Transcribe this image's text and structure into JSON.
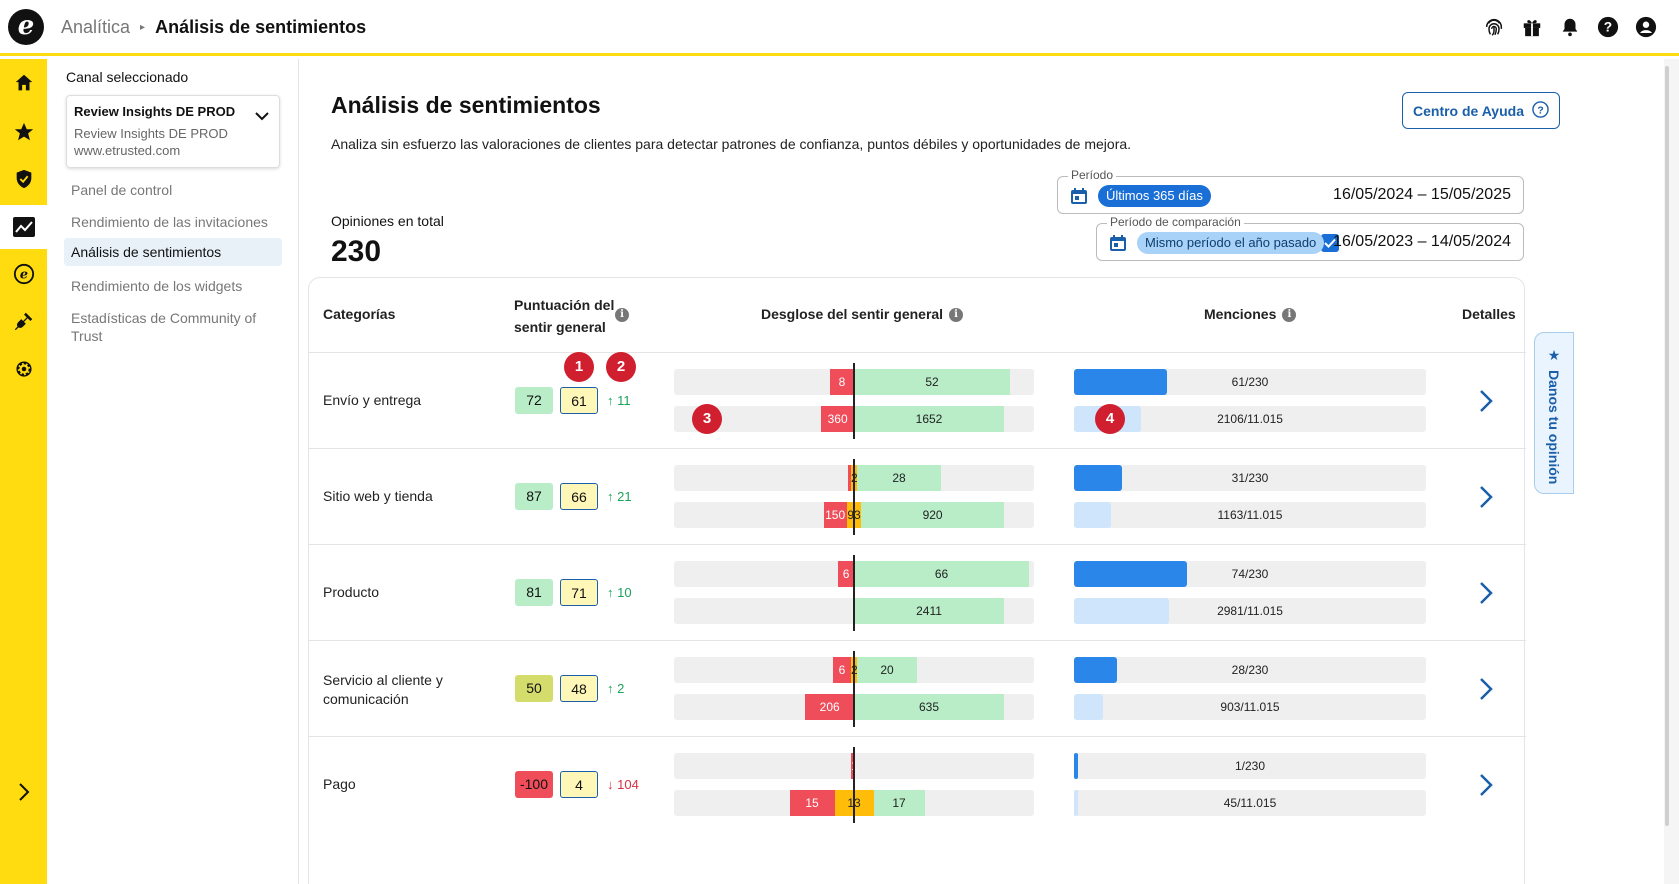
{
  "header": {
    "logo_letter": "e",
    "breadcrumb_parent": "Analítica",
    "breadcrumb_sep": "▸",
    "breadcrumb_current": "Análisis de sentimientos",
    "icons": [
      "fingerprint-icon",
      "gift-icon",
      "bell-icon",
      "help-icon",
      "user-icon"
    ]
  },
  "rail": {
    "items": [
      "home-icon",
      "star-icon",
      "shield-icon",
      "analytics-icon",
      "etrusted-icon",
      "plug-icon",
      "gear-icon"
    ],
    "active": "analytics-icon",
    "expand_icon": "chevron-right-icon"
  },
  "sidebar": {
    "channel_label": "Canal seleccionado",
    "channel_name": "Review Insights DE PROD",
    "channel_sub1": "Review Insights DE PROD",
    "channel_sub2": "www.etrusted.com",
    "nav": [
      {
        "label": "Panel de control"
      },
      {
        "label": "Rendimiento de las invitaciones"
      },
      {
        "label": "Análisis de sentimientos"
      },
      {
        "label": "Rendimiento de los widgets"
      },
      {
        "label": "Estadísticas de Community of Trust"
      }
    ],
    "active_nav": "Análisis de sentimientos"
  },
  "main": {
    "title": "Análisis de sentimientos",
    "description": "Analiza sin esfuerzo las valoraciones de clientes para detectar patrones de confianza, puntos débiles y oportunidades de mejora.",
    "help_button": "Centro de Ayuda",
    "total_label": "Opiniones en total",
    "total_value": "230",
    "period": {
      "legend": "Período",
      "chip": "Últimos 365 días",
      "dates": "16/05/2024 – 15/05/2025"
    },
    "comparison": {
      "legend": "Período de comparación",
      "chip": "Mismo período el año pasado",
      "dates": "16/05/2023 – 14/05/2024",
      "checked": true
    }
  },
  "table": {
    "headers": {
      "categories": "Categorías",
      "score_line1": "Puntuación del",
      "score_line2": "sentir general",
      "breakdown": "Desglose del sentir general",
      "mentions": "Menciones",
      "details": "Detalles"
    },
    "badges": [
      "1",
      "2",
      "3",
      "4"
    ],
    "rows": [
      {
        "category": "Envío y entrega",
        "score": "72",
        "prev_score": "61",
        "trend": "↑ 11",
        "trend_dir": "up",
        "score_color": "#b9edc8",
        "cur": {
          "neg": 8,
          "neu": 0,
          "pos": 52,
          "neg_label": "8",
          "neu_label": "",
          "pos_label": "52"
        },
        "prev": {
          "neg": 360,
          "neu": 0,
          "pos": 1652,
          "neg_label": "360",
          "neu_label": "",
          "pos_label": "1652"
        },
        "mentions_cur": "61/230",
        "mentions_cur_pct": 0.265,
        "mentions_prev": "2106/11.015",
        "mentions_prev_pct": 0.191
      },
      {
        "category": "Sitio web y tienda",
        "score": "87",
        "prev_score": "66",
        "trend": "↑ 21",
        "trend_dir": "up",
        "score_color": "#b9edc8",
        "cur": {
          "neg": 1,
          "neu": 2,
          "pos": 28,
          "neg_label": "",
          "neu_label": "2",
          "pos_label": "28"
        },
        "prev": {
          "neg": 150,
          "neu": 93,
          "pos": 920,
          "neg_label": "150",
          "neu_label": "93",
          "pos_label": "920"
        },
        "mentions_cur": "31/230",
        "mentions_cur_pct": 0.135,
        "mentions_prev": "1163/11.015",
        "mentions_prev_pct": 0.106
      },
      {
        "category": "Producto",
        "score": "81",
        "prev_score": "71",
        "trend": "↑ 10",
        "trend_dir": "up",
        "score_color": "#b9edc8",
        "cur": {
          "neg": 6,
          "neu": 0,
          "pos": 66,
          "neg_label": "6",
          "neu_label": "",
          "pos_label": "66"
        },
        "prev": {
          "neg": 0,
          "neu": 0,
          "pos": 2411,
          "neg_label": "",
          "neu_label": "",
          "pos_label": "2411"
        },
        "mentions_cur": "74/230",
        "mentions_cur_pct": 0.322,
        "mentions_prev": "2981/11.015",
        "mentions_prev_pct": 0.271
      },
      {
        "category": "Servicio al cliente y comunicación",
        "score": "50",
        "prev_score": "48",
        "trend": "↑ 2",
        "trend_dir": "up",
        "score_color": "#d4dc6c",
        "cur": {
          "neg": 6,
          "neu": 2,
          "pos": 20,
          "neg_label": "6",
          "neu_label": "2",
          "pos_label": "20"
        },
        "prev": {
          "neg": 206,
          "neu": 0,
          "pos": 635,
          "neg_label": "206",
          "neu_label": "",
          "pos_label": "635"
        },
        "mentions_cur": "28/230",
        "mentions_cur_pct": 0.122,
        "mentions_prev": "903/11.015",
        "mentions_prev_pct": 0.082
      },
      {
        "category": "Pago",
        "score": "-100",
        "prev_score": "4",
        "trend": "↓ 104",
        "trend_dir": "down",
        "score_color": "#ef4d5a",
        "cur": {
          "neg": 1,
          "neu": 0,
          "pos": 0,
          "neg_label": "1",
          "neu_label": "",
          "pos_label": ""
        },
        "prev": {
          "neg": 15,
          "neu": 13,
          "pos": 17,
          "neg_label": "15",
          "neu_label": "13",
          "pos_label": "17"
        },
        "mentions_cur": "1/230",
        "mentions_cur_pct": 0.004,
        "mentions_prev": "45/11.015",
        "mentions_prev_pct": 0.004
      }
    ]
  },
  "feedback_tab": {
    "label": "Danos tu opinión",
    "icon": "star-icon"
  }
}
